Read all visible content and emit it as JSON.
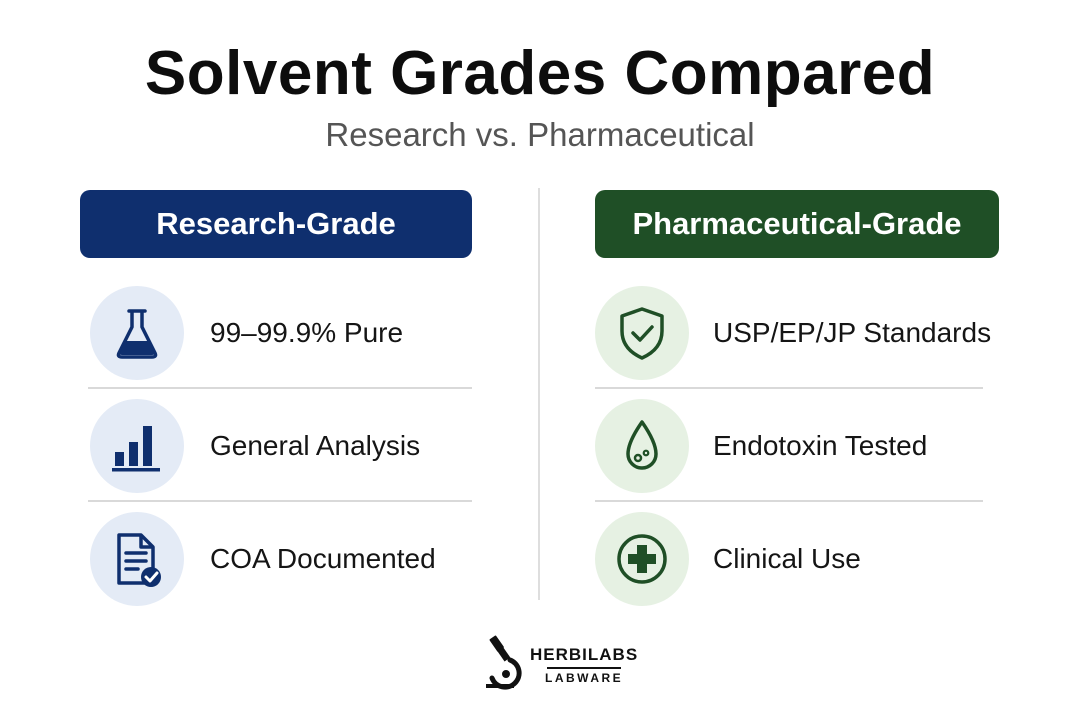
{
  "title": "Solvent Grades Compared",
  "subtitle": "Research vs. Pharmaceutical",
  "colors": {
    "research": "#0f2f6e",
    "pharma": "#1f4f26",
    "research_badge": "#e4ebf6",
    "pharma_badge": "#e6f1e3"
  },
  "research": {
    "header": "Research-Grade",
    "items": [
      {
        "label": "99–99.9% Pure",
        "icon": "flask-icon"
      },
      {
        "label": "General Analysis",
        "icon": "bar-chart-icon"
      },
      {
        "label": "COA Documented",
        "icon": "document-check-icon"
      }
    ]
  },
  "pharma": {
    "header": "Pharmaceutical-Grade",
    "items": [
      {
        "label": "USP/EP/JP Standards",
        "icon": "shield-check-icon"
      },
      {
        "label": "Endotoxin Tested",
        "icon": "droplet-icon"
      },
      {
        "label": "Clinical Use",
        "icon": "medical-cross-icon"
      }
    ]
  },
  "brand": {
    "name": "HERBILABS",
    "tagline": "LABWARE",
    "icon": "microscope-icon"
  }
}
